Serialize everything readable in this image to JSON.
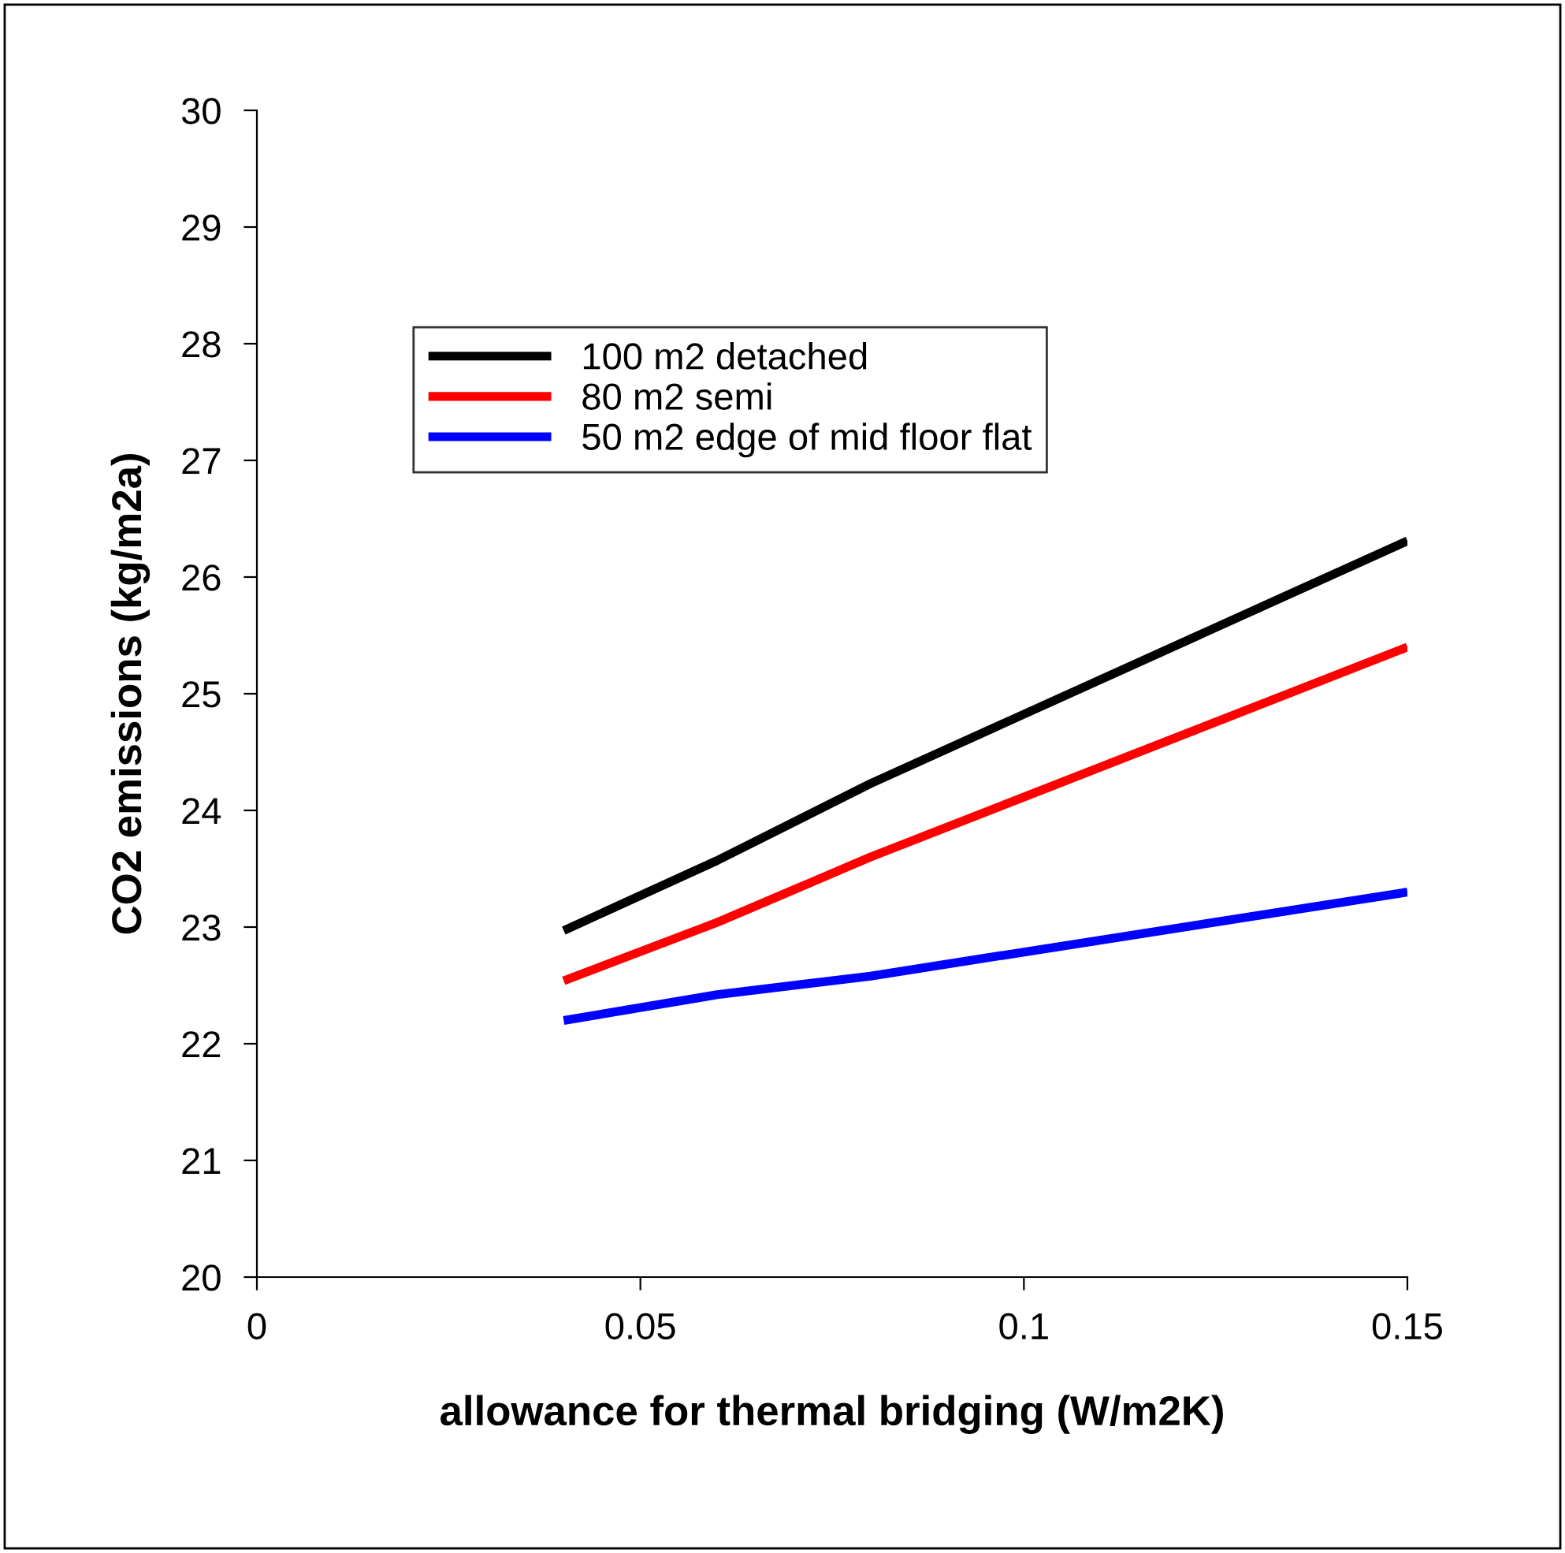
{
  "chart_data": {
    "type": "line",
    "xlabel": "allowance for thermal bridging (W/m2K)",
    "ylabel": "CO2 emissions (kg/m2a)",
    "xlim": [
      0,
      0.15
    ],
    "xticks": [
      0,
      0.05,
      0.1,
      0.15
    ],
    "ylim": [
      20,
      30
    ],
    "yticks": [
      20,
      21,
      22,
      23,
      24,
      25,
      26,
      27,
      28,
      29,
      30
    ],
    "grid": false,
    "legend": "top left",
    "marker": "none",
    "line_style": "solid",
    "series": [
      {
        "name": "100 m2 detached",
        "color": "#000000",
        "x": [
          0.04,
          0.06,
          0.08,
          0.15
        ],
        "values": [
          22.97,
          23.57,
          24.23,
          26.31
        ]
      },
      {
        "name": "80 m2 semi",
        "color": "#ff0000",
        "x": [
          0.04,
          0.06,
          0.08,
          0.15
        ],
        "values": [
          22.54,
          23.04,
          23.6,
          25.4
        ]
      },
      {
        "name": "50 m2 edge of mid floor flat",
        "color": "#0000ff",
        "x": [
          0.04,
          0.06,
          0.08,
          0.15
        ],
        "values": [
          22.2,
          22.42,
          22.58,
          23.3
        ]
      }
    ]
  }
}
